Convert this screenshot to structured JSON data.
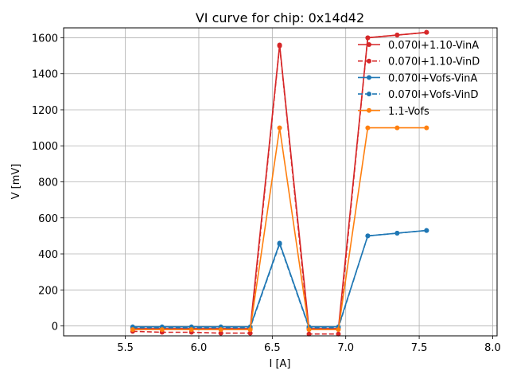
{
  "chart_data": {
    "type": "line",
    "title": "VI curve for chip: 0x14d42",
    "xlabel": "I [A]",
    "ylabel": "V [mV]",
    "xlim": [
      5.08,
      8.03
    ],
    "ylim": [
      -55,
      1655
    ],
    "xticks": [
      5.5,
      6.0,
      6.5,
      7.0,
      7.5,
      8.0
    ],
    "xtick_labels": [
      "5.5",
      "6.0",
      "6.5",
      "7.0",
      "7.5",
      "8.0"
    ],
    "yticks": [
      0,
      200,
      400,
      600,
      800,
      1000,
      1200,
      1400,
      1600
    ],
    "ytick_labels": [
      "0",
      "200",
      "400",
      "600",
      "800",
      "1000",
      "1200",
      "1400",
      "1600"
    ],
    "grid": true,
    "legend_position": "top-right",
    "x": [
      5.55,
      5.75,
      5.95,
      6.15,
      6.35,
      6.55,
      6.75,
      6.95,
      7.15,
      7.35,
      7.55
    ],
    "series": [
      {
        "name": "0.070I+1.10-VinA",
        "color": "#d62728",
        "dashed": false,
        "values": [
          -15,
          -15,
          -15,
          -15,
          -15,
          1560,
          -15,
          -15,
          1600,
          1615,
          1630
        ]
      },
      {
        "name": "0.070I+1.10-VinD",
        "color": "#d62728",
        "dashed": true,
        "values": [
          -30,
          -35,
          -35,
          -40,
          -40,
          1555,
          -45,
          -45,
          1600,
          1615,
          1630
        ]
      },
      {
        "name": "0.070I+Vofs-VinA",
        "color": "#1f77b4",
        "dashed": false,
        "values": [
          -5,
          -5,
          -5,
          -5,
          -5,
          460,
          -5,
          -5,
          500,
          515,
          530
        ]
      },
      {
        "name": "0.070I+Vofs-VinD",
        "color": "#1f77b4",
        "dashed": true,
        "values": [
          -10,
          -10,
          -10,
          -10,
          -10,
          455,
          -10,
          -10,
          500,
          515,
          530
        ]
      },
      {
        "name": "1.1-Vofs",
        "color": "#ff7f0e",
        "dashed": false,
        "values": [
          -20,
          -20,
          -20,
          -20,
          -20,
          1100,
          -20,
          -20,
          1100,
          1100,
          1100
        ]
      }
    ]
  }
}
